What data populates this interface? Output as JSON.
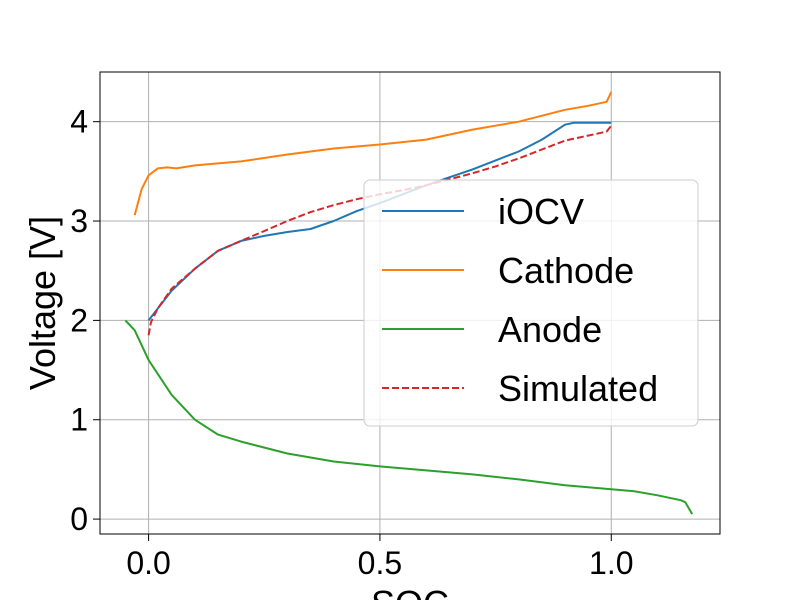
{
  "chart_data": {
    "type": "line",
    "title": "",
    "xlabel": "SOC",
    "ylabel": "Voltage [V]",
    "xlim": [
      -0.105,
      1.235
    ],
    "ylim": [
      -0.15,
      4.5
    ],
    "xticks": [
      0.0,
      0.5,
      1.0
    ],
    "xtick_labels": [
      "0.0",
      "0.5",
      "1.0"
    ],
    "yticks": [
      0,
      1,
      2,
      3,
      4
    ],
    "ytick_labels": [
      "0",
      "1",
      "2",
      "3",
      "4"
    ],
    "grid": true,
    "legend_position": "center-right",
    "series": [
      {
        "name": "iOCV",
        "color": "#1f77b4",
        "dash": "solid",
        "x": [
          0.0,
          0.02,
          0.05,
          0.1,
          0.15,
          0.2,
          0.25,
          0.3,
          0.35,
          0.4,
          0.45,
          0.5,
          0.55,
          0.6,
          0.65,
          0.7,
          0.75,
          0.8,
          0.85,
          0.9,
          0.92,
          0.95,
          1.0
        ],
        "y": [
          2.0,
          2.12,
          2.3,
          2.52,
          2.7,
          2.8,
          2.85,
          2.89,
          2.92,
          3.0,
          3.1,
          3.18,
          3.27,
          3.36,
          3.44,
          3.52,
          3.61,
          3.7,
          3.82,
          3.97,
          3.99,
          3.99,
          3.99
        ]
      },
      {
        "name": "Cathode",
        "color": "#ff7f0e",
        "dash": "solid",
        "x": [
          -0.03,
          -0.015,
          0.0,
          0.02,
          0.04,
          0.06,
          0.1,
          0.2,
          0.3,
          0.4,
          0.5,
          0.6,
          0.7,
          0.8,
          0.9,
          0.95,
          0.99,
          1.0
        ],
        "y": [
          3.06,
          3.32,
          3.46,
          3.53,
          3.54,
          3.53,
          3.56,
          3.6,
          3.67,
          3.73,
          3.77,
          3.82,
          3.92,
          4.0,
          4.12,
          4.16,
          4.2,
          4.3
        ]
      },
      {
        "name": "Anode",
        "color": "#2ca02c",
        "dash": "solid",
        "x": [
          -0.05,
          -0.03,
          0.0,
          0.05,
          0.1,
          0.15,
          0.2,
          0.3,
          0.4,
          0.5,
          0.6,
          0.7,
          0.8,
          0.9,
          1.0,
          1.05,
          1.1,
          1.15,
          1.16,
          1.175
        ],
        "y": [
          2.0,
          1.9,
          1.6,
          1.25,
          1.0,
          0.85,
          0.78,
          0.66,
          0.58,
          0.53,
          0.49,
          0.45,
          0.4,
          0.34,
          0.3,
          0.28,
          0.24,
          0.19,
          0.17,
          0.05
        ]
      },
      {
        "name": "Simulated",
        "color": "#d62728",
        "dash": "dashed",
        "x": [
          0.0,
          0.005,
          0.02,
          0.05,
          0.1,
          0.15,
          0.2,
          0.25,
          0.3,
          0.35,
          0.4,
          0.45,
          0.5,
          0.55,
          0.6,
          0.65,
          0.7,
          0.75,
          0.8,
          0.85,
          0.9,
          0.95,
          0.99,
          1.0
        ],
        "y": [
          1.85,
          1.98,
          2.12,
          2.32,
          2.52,
          2.7,
          2.8,
          2.9,
          3.0,
          3.09,
          3.16,
          3.22,
          3.27,
          3.31,
          3.36,
          3.42,
          3.48,
          3.55,
          3.63,
          3.72,
          3.81,
          3.86,
          3.9,
          3.96
        ]
      }
    ]
  }
}
